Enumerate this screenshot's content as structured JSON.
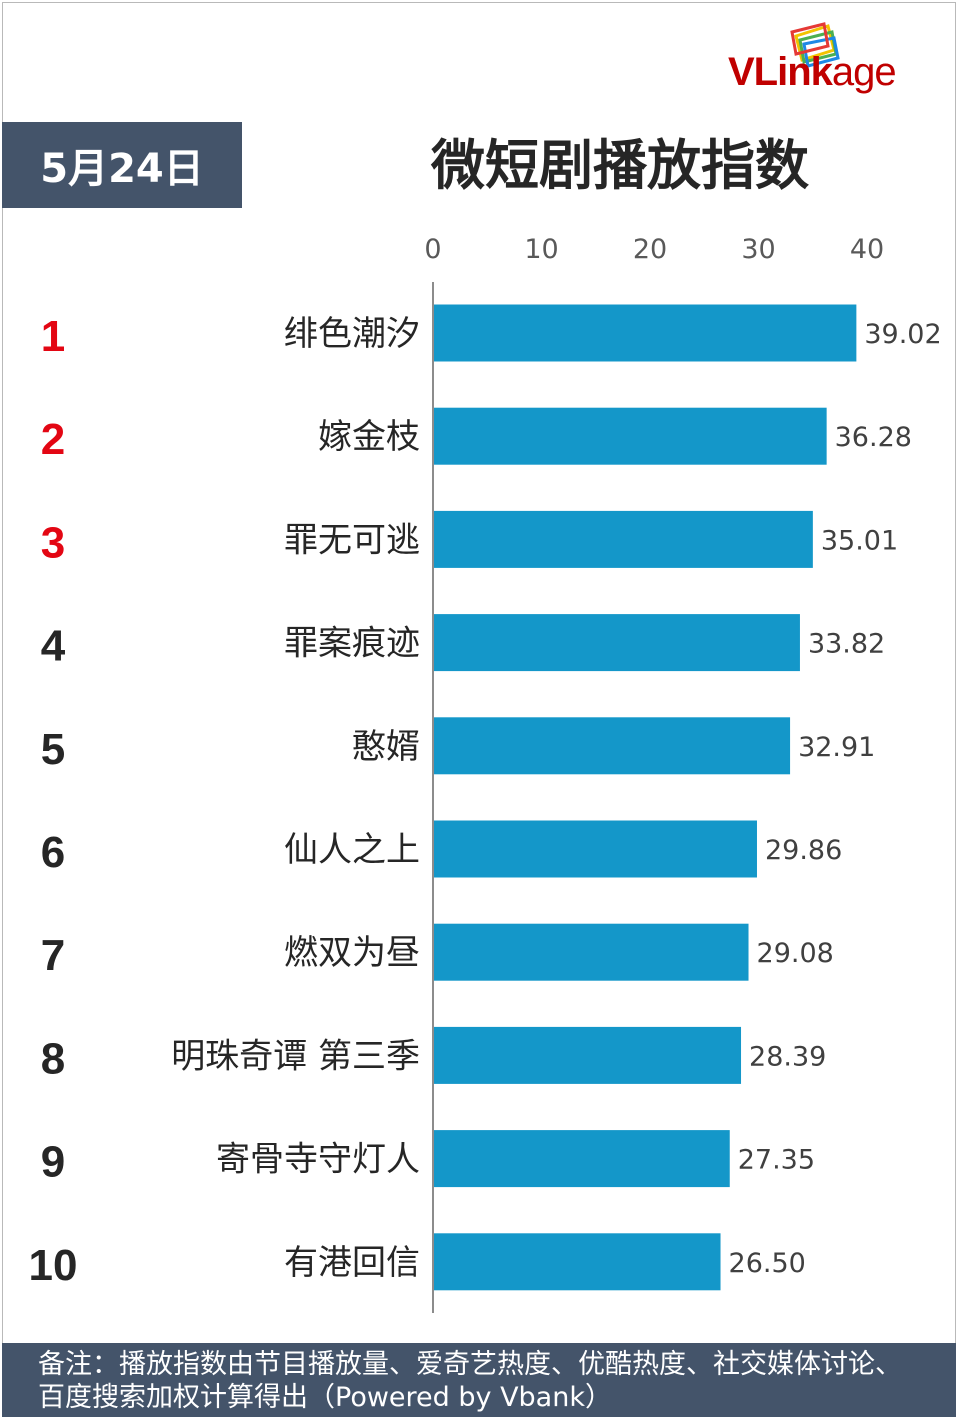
{
  "header": {
    "date": "5月24日",
    "title": "微短剧播放指数",
    "logo": "VLinkage"
  },
  "footer": {
    "note": "备注：播放指数由节目播放量、爱奇艺热度、优酷热度、社交媒体讨论、百度搜索加权计算得出（Powered by Vbank）"
  },
  "colors": {
    "bar": "#1497c9",
    "header_bg": "#44546a",
    "top_rank": "#e30613",
    "rank": "#262626"
  },
  "chart_data": {
    "type": "bar",
    "orientation": "horizontal",
    "title": "微短剧播放指数",
    "xlim": [
      0,
      40
    ],
    "xticks": [
      "0",
      "10",
      "20",
      "30",
      "40"
    ],
    "axis_position": "top",
    "grid": false,
    "ranks": [
      "1",
      "2",
      "3",
      "4",
      "5",
      "6",
      "7",
      "8",
      "9",
      "10"
    ],
    "categories": [
      "绯色潮汐",
      "嫁金枝",
      "罪无可逃",
      "罪案痕迹",
      "憨婿",
      "仙人之上",
      "燃双为昼",
      "明珠奇谭 第三季",
      "寄骨寺守灯人",
      "有港回信"
    ],
    "values": [
      39.02,
      36.28,
      35.01,
      33.82,
      32.91,
      29.86,
      29.08,
      28.39,
      27.35,
      26.5
    ],
    "value_labels": [
      "39.02",
      "36.28",
      "35.01",
      "33.82",
      "32.91",
      "29.86",
      "29.08",
      "28.39",
      "27.35",
      "26.50"
    ]
  }
}
